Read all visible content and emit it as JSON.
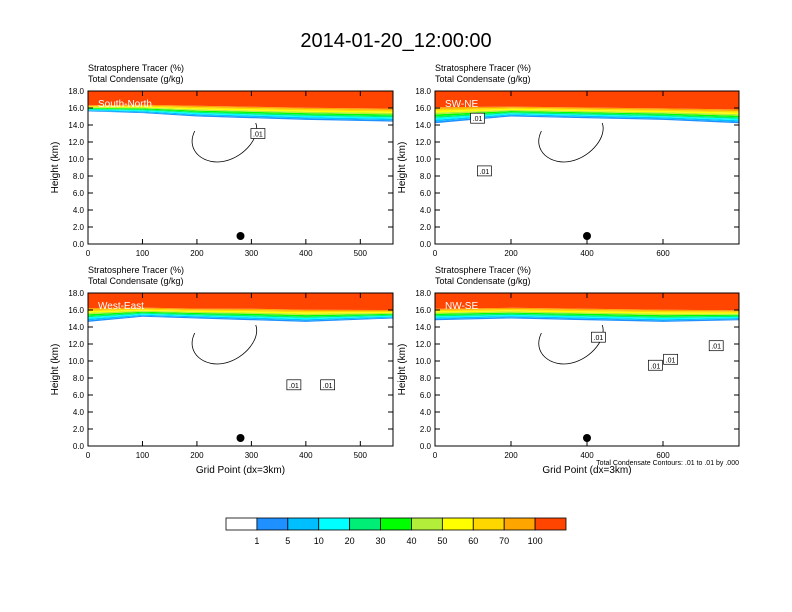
{
  "title": "2014-01-20_12:00:00",
  "colors": {
    "levels": [
      "#ffffff",
      "#1e90ff",
      "#00bfff",
      "#00ffff",
      "#00ee76",
      "#00ff00",
      "#b3ee3a",
      "#ffff00",
      "#ffd700",
      "#ffa500",
      "#ff4500",
      "#ff0000"
    ]
  },
  "chart_data": [
    {
      "type": "contour",
      "panel_label": "South-North",
      "left_label_1": "Stratosphere Tracer   (%)",
      "left_label_2": "Total Condensate   (g/kg)",
      "ylabel": "Height (km)",
      "xlabel": "",
      "xlim": [
        0,
        560
      ],
      "ylim": [
        0,
        18
      ],
      "xticks": [
        0,
        100,
        200,
        300,
        400,
        500
      ],
      "yticks": [
        "0.0",
        "2.0",
        "4.0",
        "6.0",
        "8.0",
        "10.0",
        "12.0",
        "14.0",
        "16.0",
        "18.0"
      ],
      "marker_x": 280,
      "contour_labels": [
        {
          "text": ".01",
          "x": 312,
          "y": 13.0
        }
      ],
      "tracer_band": [
        {
          "x": 0,
          "top_red": 16.4,
          "base": 15.6
        },
        {
          "x": 100,
          "top_red": 16.5,
          "base": 15.4
        },
        {
          "x": 200,
          "top_red": 16.4,
          "base": 15.0
        },
        {
          "x": 300,
          "top_red": 16.3,
          "base": 14.8
        },
        {
          "x": 400,
          "top_red": 16.2,
          "base": 14.6
        },
        {
          "x": 560,
          "top_red": 16.1,
          "base": 14.4
        }
      ]
    },
    {
      "type": "contour",
      "panel_label": "SW-NE",
      "left_label_1": "Stratosphere Tracer   (%)",
      "left_label_2": "Total Condensate   (g/kg)",
      "ylabel": "Height (km)",
      "xlabel": "",
      "xlim": [
        0,
        800
      ],
      "ylim": [
        0,
        18
      ],
      "xticks": [
        0,
        200,
        400,
        600
      ],
      "yticks": [
        "0.0",
        "2.0",
        "4.0",
        "6.0",
        "8.0",
        "10.0",
        "12.0",
        "14.0",
        "16.0",
        "18.0"
      ],
      "marker_x": 400,
      "contour_labels": [
        {
          "text": ".01",
          "x": 112,
          "y": 14.8
        },
        {
          "text": ".01",
          "x": 130,
          "y": 8.6
        }
      ],
      "tracer_band": [
        {
          "x": 0,
          "top_red": 16.3,
          "base": 14.2
        },
        {
          "x": 200,
          "top_red": 16.3,
          "base": 15.0
        },
        {
          "x": 400,
          "top_red": 16.2,
          "base": 14.8
        },
        {
          "x": 600,
          "top_red": 16.1,
          "base": 14.6
        },
        {
          "x": 800,
          "top_red": 16.0,
          "base": 14.2
        }
      ]
    },
    {
      "type": "contour",
      "panel_label": "West-East",
      "left_label_1": "Stratosphere Tracer   (%)",
      "left_label_2": "Total Condensate   (g/kg)",
      "ylabel": "Height (km)",
      "xlabel": "Grid Point (dx=3km)",
      "xlim": [
        0,
        560
      ],
      "ylim": [
        0,
        18
      ],
      "xticks": [
        0,
        100,
        200,
        300,
        400,
        500
      ],
      "yticks": [
        "0.0",
        "2.0",
        "4.0",
        "6.0",
        "8.0",
        "10.0",
        "12.0",
        "14.0",
        "16.0",
        "18.0"
      ],
      "marker_x": 280,
      "contour_labels": [
        {
          "text": ".01",
          "x": 378,
          "y": 7.2
        },
        {
          "text": ".01",
          "x": 440,
          "y": 7.2
        }
      ],
      "tracer_band": [
        {
          "x": 0,
          "top_red": 16.4,
          "base": 14.6
        },
        {
          "x": 100,
          "top_red": 16.4,
          "base": 15.2
        },
        {
          "x": 200,
          "top_red": 16.3,
          "base": 15.0
        },
        {
          "x": 300,
          "top_red": 16.3,
          "base": 14.8
        },
        {
          "x": 400,
          "top_red": 16.2,
          "base": 14.6
        },
        {
          "x": 560,
          "top_red": 16.1,
          "base": 15.0
        }
      ]
    },
    {
      "type": "contour",
      "panel_label": "NW-SE",
      "left_label_1": "Stratosphere Tracer   (%)",
      "left_label_2": "Total Condensate   (g/kg)",
      "ylabel": "Height (km)",
      "xlabel": "Grid Point (dx=3km)",
      "xlim": [
        0,
        800
      ],
      "ylim": [
        0,
        18
      ],
      "xticks": [
        0,
        200,
        400,
        600
      ],
      "yticks": [
        "0.0",
        "2.0",
        "4.0",
        "6.0",
        "8.0",
        "10.0",
        "12.0",
        "14.0",
        "16.0",
        "18.0"
      ],
      "marker_x": 400,
      "contour_labels": [
        {
          "text": ".01",
          "x": 430,
          "y": 12.8
        },
        {
          "text": ".01",
          "x": 580,
          "y": 9.5
        },
        {
          "text": ".01",
          "x": 620,
          "y": 10.2
        },
        {
          "text": ".01",
          "x": 740,
          "y": 11.8
        }
      ],
      "footnote": "Total Condensate Contours: .01 to .01 by .000",
      "tracer_band": [
        {
          "x": 0,
          "top_red": 16.3,
          "base": 14.8
        },
        {
          "x": 200,
          "top_red": 16.4,
          "base": 15.0
        },
        {
          "x": 400,
          "top_red": 16.3,
          "base": 14.8
        },
        {
          "x": 600,
          "top_red": 16.2,
          "base": 14.6
        },
        {
          "x": 800,
          "top_red": 16.1,
          "base": 14.8
        }
      ]
    }
  ],
  "colorbar": {
    "labels": [
      "1",
      "5",
      "10",
      "20",
      "30",
      "40",
      "50",
      "60",
      "70",
      "100"
    ]
  }
}
